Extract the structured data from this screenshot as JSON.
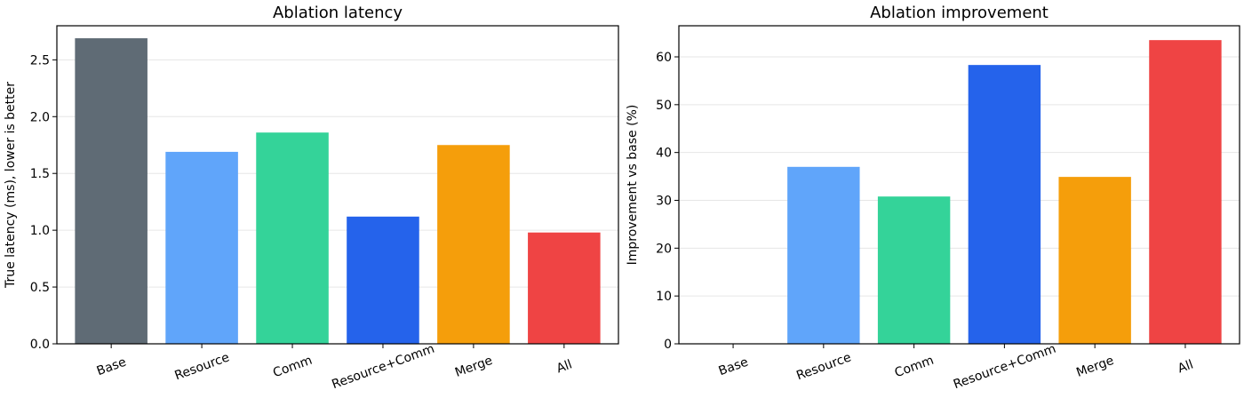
{
  "chart_data": [
    {
      "type": "bar",
      "title": "Ablation latency",
      "xlabel": "",
      "ylabel": "True latency (ms), lower is better",
      "categories": [
        "Base",
        "Resource",
        "Comm",
        "Resource+Comm",
        "Merge",
        "All"
      ],
      "values": [
        2.69,
        1.69,
        1.86,
        1.12,
        1.75,
        0.98
      ],
      "colors": [
        "#5f6b75",
        "#60a5fa",
        "#34d399",
        "#2563eb",
        "#f59e0b",
        "#ef4444"
      ],
      "ylim": [
        0,
        2.8
      ],
      "yticks": [
        0.0,
        0.5,
        1.0,
        1.5,
        2.0,
        2.5
      ],
      "ytick_labels": [
        "0.0",
        "0.5",
        "1.0",
        "1.5",
        "2.0",
        "2.5"
      ],
      "grid": "horizontal"
    },
    {
      "type": "bar",
      "title": "Ablation improvement",
      "xlabel": "",
      "ylabel": "Improvement vs base (%)",
      "categories": [
        "Base",
        "Resource",
        "Comm",
        "Resource+Comm",
        "Merge",
        "All"
      ],
      "values": [
        0,
        37.0,
        30.8,
        58.3,
        34.9,
        63.5
      ],
      "colors": [
        "#5f6b75",
        "#60a5fa",
        "#34d399",
        "#2563eb",
        "#f59e0b",
        "#ef4444"
      ],
      "ylim": [
        0,
        66.5
      ],
      "yticks": [
        0,
        10,
        20,
        30,
        40,
        50,
        60
      ],
      "ytick_labels": [
        "0",
        "10",
        "20",
        "30",
        "40",
        "50",
        "60"
      ],
      "grid": "horizontal"
    }
  ]
}
